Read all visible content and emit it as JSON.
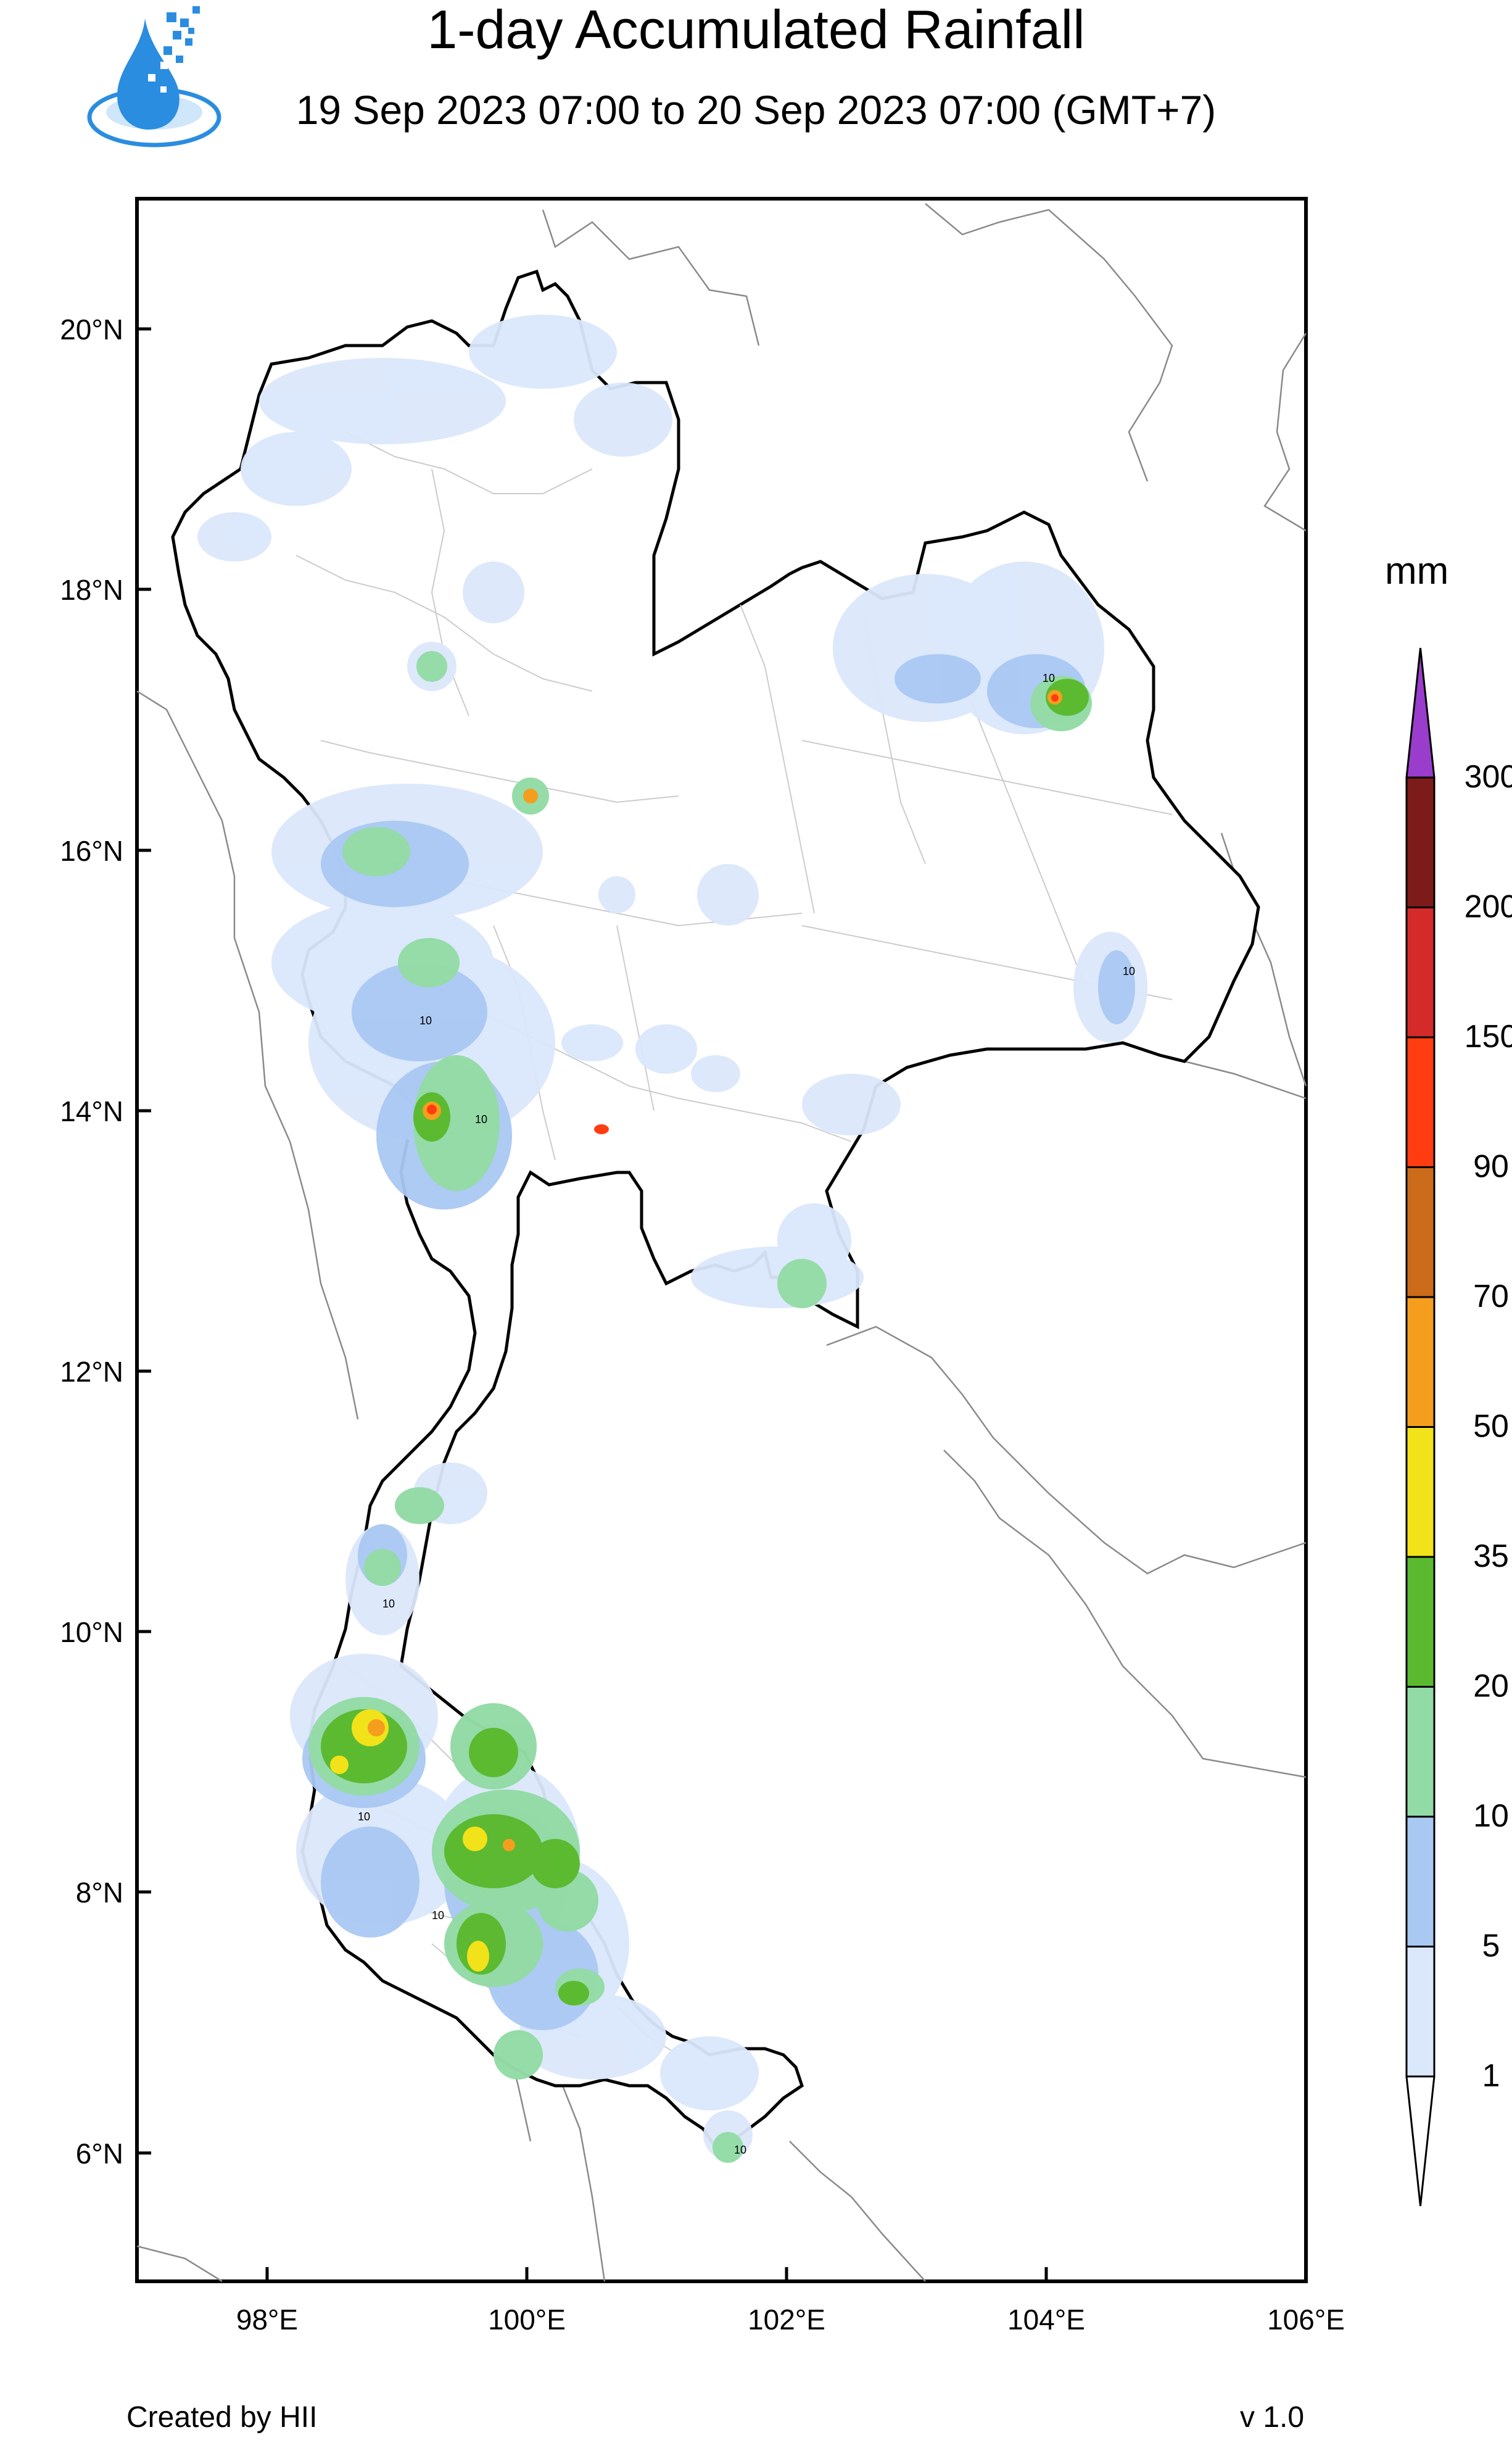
{
  "header": {
    "title": "1-day Accumulated Rainfall",
    "subtitle": "19 Sep 2023 07:00 to 20 Sep 2023 07:00 (GMT+7)"
  },
  "footer": {
    "credit": "Created by HII",
    "version": "v 1.0"
  },
  "axes": {
    "lat_labels": [
      "20°N",
      "18°N",
      "16°N",
      "14°N",
      "12°N",
      "10°N",
      "8°N",
      "6°N"
    ],
    "lon_labels": [
      "98°E",
      "100°E",
      "102°E",
      "104°E",
      "106°E"
    ],
    "lat_range": [
      5.0,
      20.9
    ],
    "lon_range": [
      97.0,
      106.0
    ]
  },
  "legend": {
    "unit": "mm",
    "levels": [
      "1",
      "5",
      "10",
      "20",
      "35",
      "50",
      "70",
      "90",
      "150",
      "200",
      "300"
    ],
    "colors": [
      "#ffffff",
      "#dbe7fb",
      "#a9c8f2",
      "#93dba6",
      "#5bb92f",
      "#f1e21a",
      "#f59e1e",
      "#cc6b1a",
      "#ff3d10",
      "#d52a2a",
      "#7d1a1a",
      "#9a3ccc"
    ]
  },
  "contour_label": "10",
  "colors": {
    "country_border": "#000000",
    "province_border": "#c8c8c8",
    "neighbor_border": "#8a8a8a",
    "logo_blue": "#2a8de0"
  }
}
